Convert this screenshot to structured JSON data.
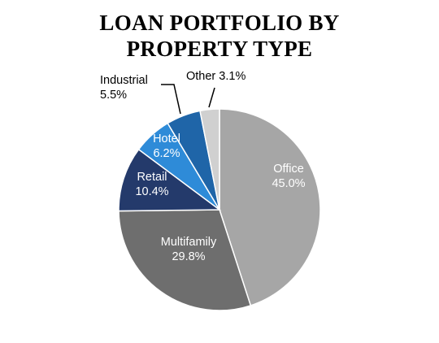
{
  "chart_data": {
    "type": "pie",
    "title_lines": [
      "LOAN PORTFOLIO BY",
      "PROPERTY TYPE"
    ],
    "slices": [
      {
        "name": "Office",
        "value": 45.0,
        "label": "45.0%",
        "color": "#a6a6a6",
        "label_color": "#ffffff"
      },
      {
        "name": "Multifamily",
        "value": 29.8,
        "label": "29.8%",
        "color": "#6e6e6e",
        "label_color": "#ffffff"
      },
      {
        "name": "Retail",
        "value": 10.4,
        "label": "10.4%",
        "color": "#243a6b",
        "label_color": "#ffffff"
      },
      {
        "name": "Hotel",
        "value": 6.2,
        "label": "6.2%",
        "color": "#2e8bd8",
        "label_color": "#ffffff"
      },
      {
        "name": "Industrial",
        "value": 5.5,
        "label": "5.5%",
        "color": "#1f65a8",
        "label_color": "#000000"
      },
      {
        "name": "Other",
        "value": 3.1,
        "label": "3.1%",
        "color": "#d0d0d0",
        "label_color": "#000000"
      }
    ],
    "start_angle_deg": 0,
    "direction": "clockwise"
  }
}
